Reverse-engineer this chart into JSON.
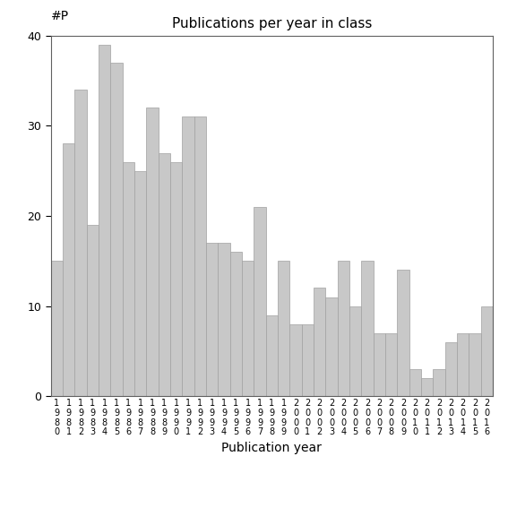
{
  "title": "Publications per year in class",
  "xlabel": "Publication year",
  "ylabel": "#P",
  "years": [
    "1980",
    "1981",
    "1982",
    "1983",
    "1984",
    "1985",
    "1986",
    "1987",
    "1988",
    "1989",
    "1990",
    "1991",
    "1992",
    "1993",
    "1994",
    "1995",
    "1996",
    "1997",
    "1998",
    "1999",
    "2000",
    "2001",
    "2002",
    "2003",
    "2004",
    "2005",
    "2006",
    "2007",
    "2008",
    "2009",
    "2010",
    "2011",
    "2012",
    "2013",
    "2014",
    "2015",
    "2016"
  ],
  "values": [
    15,
    28,
    34,
    19,
    39,
    37,
    26,
    25,
    32,
    27,
    26,
    31,
    31,
    17,
    17,
    16,
    15,
    21,
    9,
    15,
    8,
    8,
    12,
    11,
    15,
    10,
    15,
    7,
    7,
    14,
    3,
    2,
    3,
    6,
    7,
    7,
    10
  ],
  "bar_color": "#c8c8c8",
  "bar_edgecolor": "#a0a0a0",
  "ylim": [
    0,
    40
  ],
  "yticks": [
    0,
    10,
    20,
    30,
    40
  ],
  "title_fontsize": 11,
  "axis_fontsize": 10,
  "tick_fontsize": 9,
  "xtick_fontsize": 7
}
